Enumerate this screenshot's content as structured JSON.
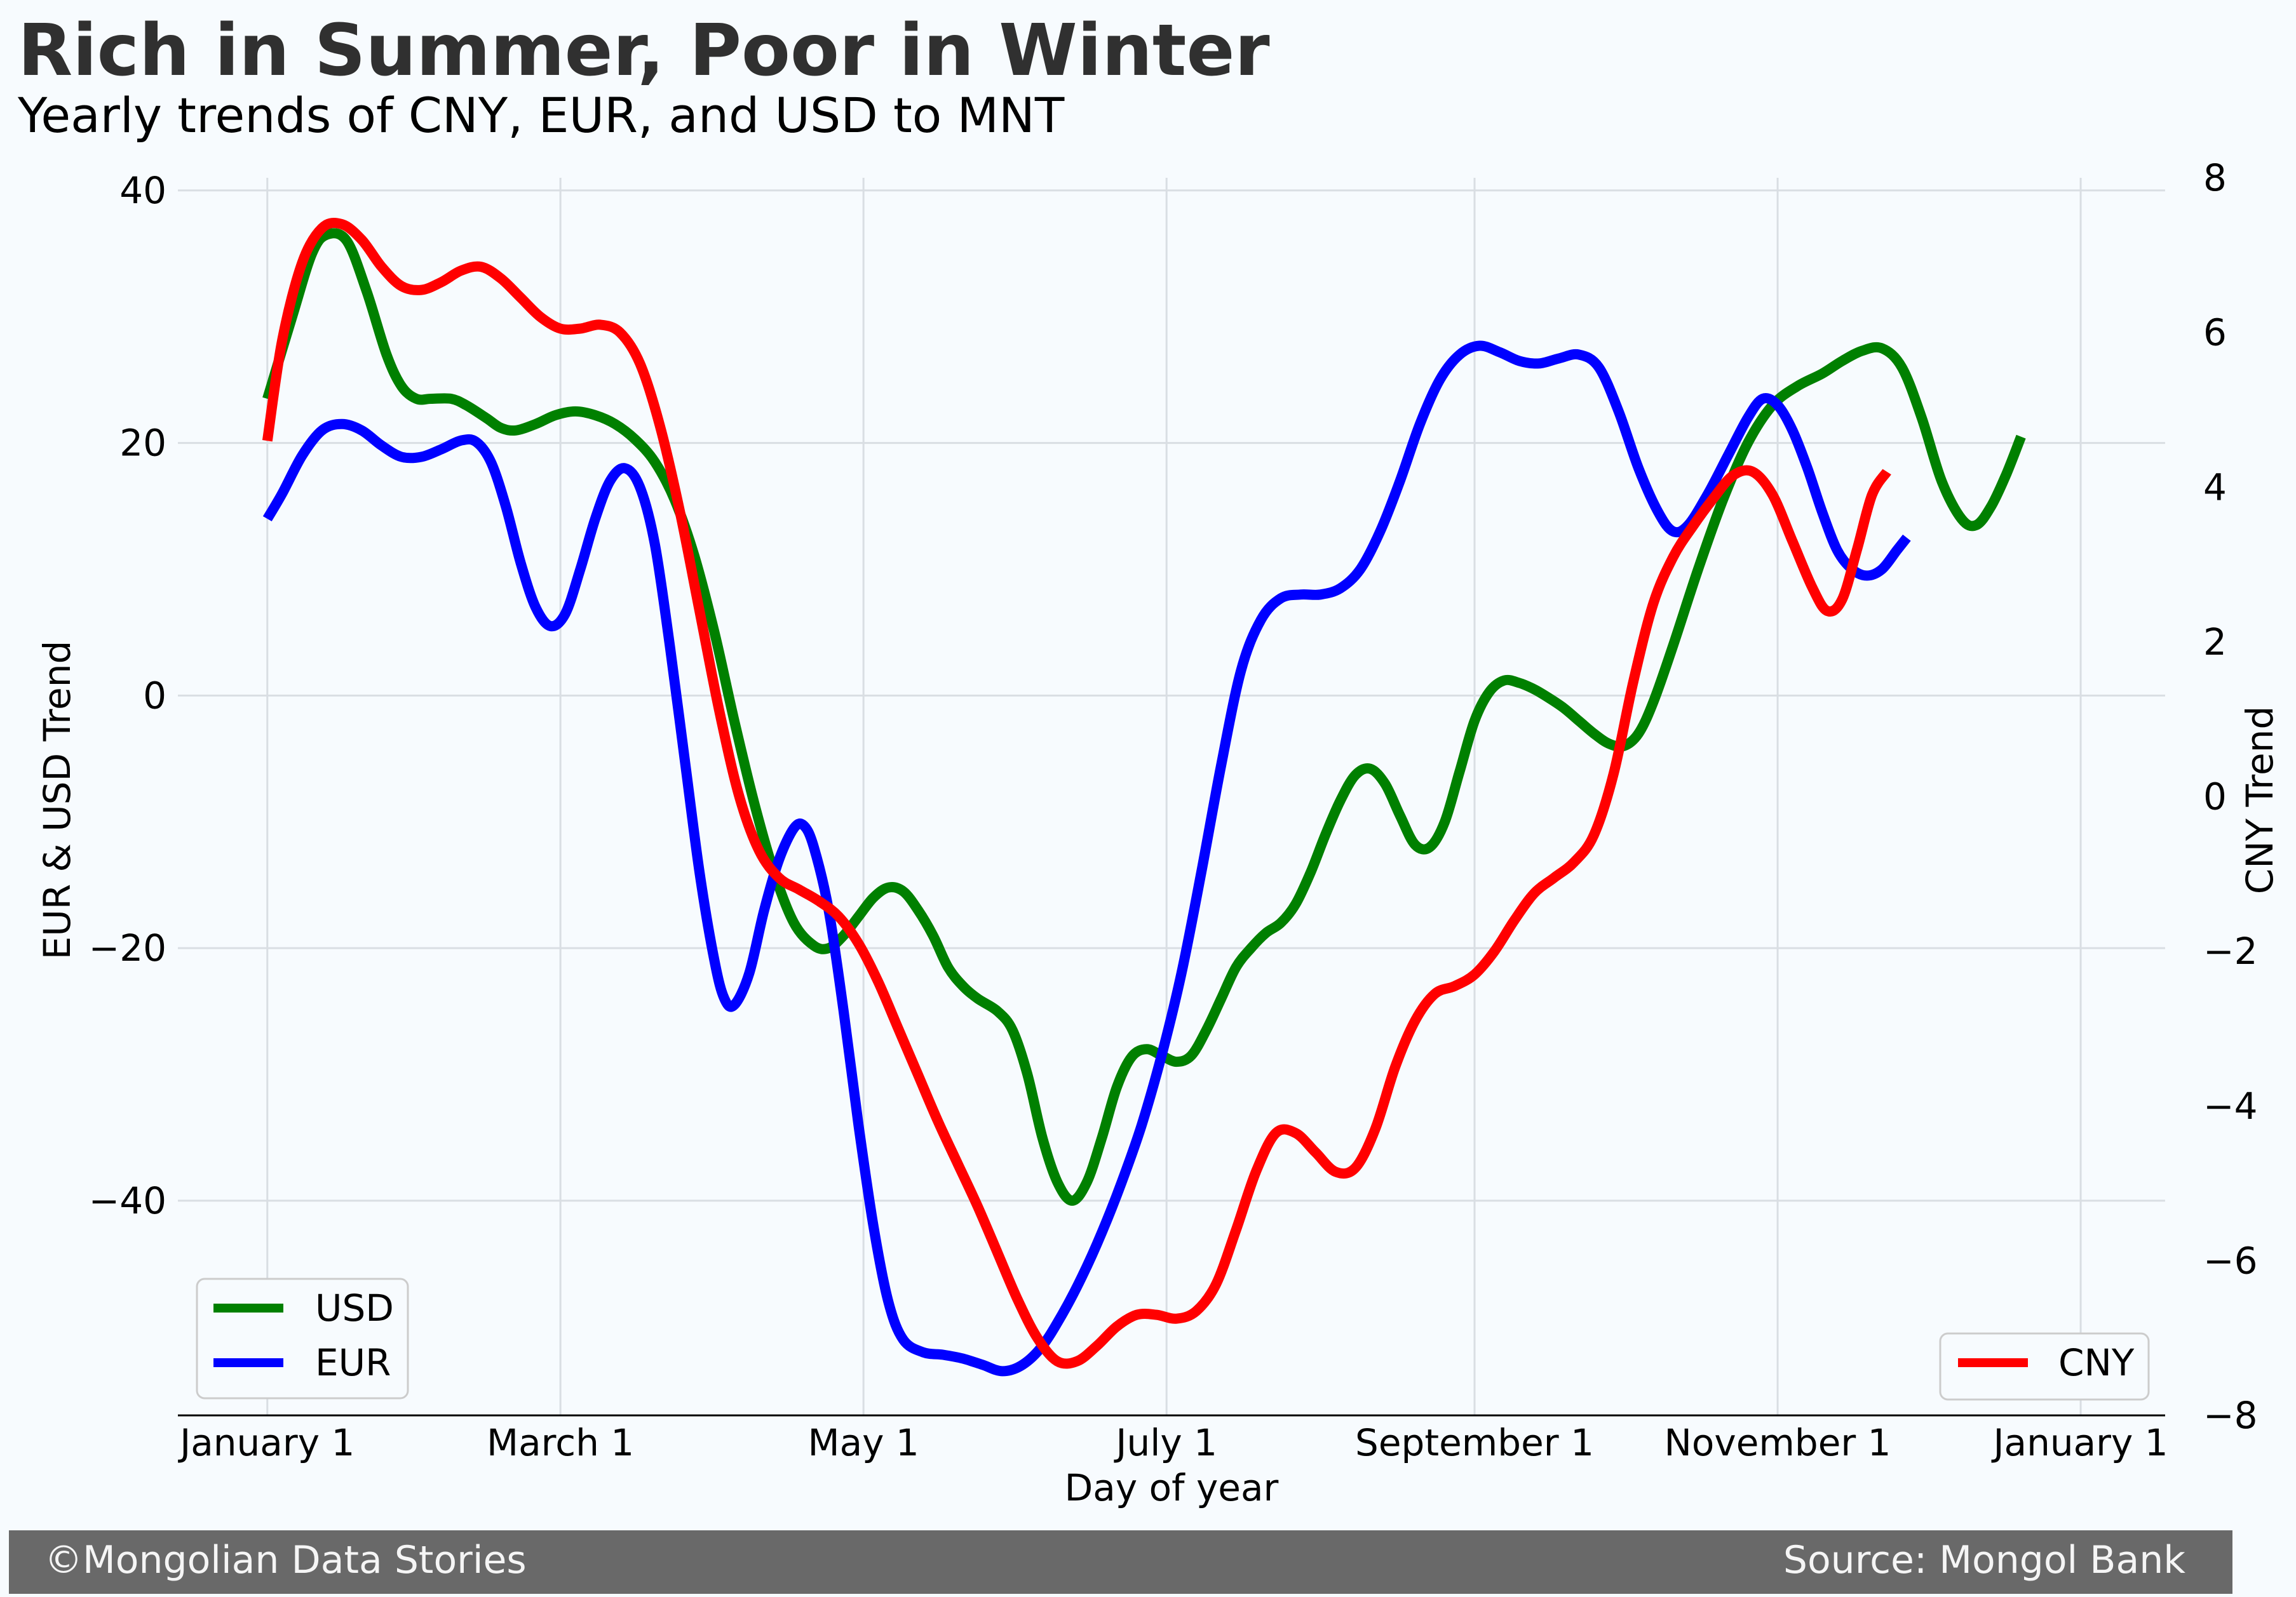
{
  "chart_data": {
    "type": "line",
    "title": "Rich in Summer, Poor in Winter",
    "subtitle": "Yearly trends of CNY, EUR, and USD to MNT",
    "xlabel": "Day of year",
    "ylabel_left": "EUR & USD Trend",
    "ylabel_right": "CNY Trend",
    "x_ticks": [
      {
        "label": "January 1",
        "day": 1
      },
      {
        "label": "March 1",
        "day": 60
      },
      {
        "label": "May 1",
        "day": 121
      },
      {
        "label": "July 1",
        "day": 182
      },
      {
        "label": "September 1",
        "day": 244
      },
      {
        "label": "November 1",
        "day": 305
      },
      {
        "label": "January 1",
        "day": 366
      }
    ],
    "xlim": [
      -17,
      383
    ],
    "ylim_left": [
      -57,
      41
    ],
    "ylim_right": [
      -8,
      8
    ],
    "yticks_left": [
      40,
      20,
      0,
      -20,
      -40
    ],
    "yticks_right": [
      8,
      6,
      4,
      2,
      0,
      -2,
      -4,
      -6,
      -8
    ],
    "grid": true,
    "legend_left": {
      "placement": "lower-left",
      "entries": [
        "USD",
        "EUR"
      ]
    },
    "legend_right": {
      "placement": "lower-right",
      "entries": [
        "CNY"
      ]
    },
    "series": [
      {
        "name": "USD",
        "axis": "left",
        "color": "#008000",
        "points": [
          [
            1,
            23.5
          ],
          [
            6,
            30
          ],
          [
            10,
            35
          ],
          [
            13,
            36.5
          ],
          [
            17,
            36
          ],
          [
            21,
            32
          ],
          [
            25,
            27
          ],
          [
            28,
            24.5
          ],
          [
            31,
            23.5
          ],
          [
            34,
            23.5
          ],
          [
            38,
            23.5
          ],
          [
            41,
            23
          ],
          [
            45,
            22
          ],
          [
            48,
            21.2
          ],
          [
            51,
            21
          ],
          [
            55,
            21.5
          ],
          [
            59,
            22.2
          ],
          [
            63,
            22.5
          ],
          [
            67,
            22.2
          ],
          [
            71,
            21.5
          ],
          [
            75,
            20.3
          ],
          [
            79,
            18.5
          ],
          [
            83,
            15.5
          ],
          [
            87,
            11
          ],
          [
            91,
            5
          ],
          [
            95,
            -2
          ],
          [
            99,
            -8.5
          ],
          [
            103,
            -14
          ],
          [
            107,
            -18
          ],
          [
            111,
            -19.8
          ],
          [
            114,
            -20
          ],
          [
            117,
            -19
          ],
          [
            120,
            -17.5
          ],
          [
            123,
            -16
          ],
          [
            126,
            -15.2
          ],
          [
            129,
            -15.5
          ],
          [
            132,
            -17
          ],
          [
            135,
            -19
          ],
          [
            138,
            -21.5
          ],
          [
            141,
            -23
          ],
          [
            144,
            -24
          ],
          [
            148,
            -25
          ],
          [
            151,
            -26.5
          ],
          [
            154,
            -30
          ],
          [
            157,
            -35
          ],
          [
            160,
            -38.5
          ],
          [
            163,
            -40
          ],
          [
            166,
            -38.5
          ],
          [
            169,
            -35
          ],
          [
            172,
            -31
          ],
          [
            175,
            -28.6
          ],
          [
            178,
            -28
          ],
          [
            181,
            -28.5
          ],
          [
            184,
            -29
          ],
          [
            187,
            -28.5
          ],
          [
            190,
            -26.5
          ],
          [
            193,
            -24
          ],
          [
            196,
            -21.5
          ],
          [
            199,
            -20
          ],
          [
            202,
            -18.8
          ],
          [
            205,
            -18
          ],
          [
            208,
            -16.5
          ],
          [
            211,
            -14
          ],
          [
            214,
            -11
          ],
          [
            217,
            -8.3
          ],
          [
            220,
            -6.3
          ],
          [
            223,
            -5.8
          ],
          [
            226,
            -7
          ],
          [
            229,
            -9.5
          ],
          [
            232,
            -11.8
          ],
          [
            235,
            -12
          ],
          [
            238,
            -10
          ],
          [
            241,
            -6
          ],
          [
            244,
            -2
          ],
          [
            247,
            0.3
          ],
          [
            250,
            1.2
          ],
          [
            253,
            1
          ],
          [
            256,
            0.5
          ],
          [
            259,
            -0.2
          ],
          [
            262,
            -1
          ],
          [
            265,
            -2
          ],
          [
            268,
            -3
          ],
          [
            271,
            -3.8
          ],
          [
            274,
            -4
          ],
          [
            277,
            -3
          ],
          [
            280,
            -0.5
          ],
          [
            284,
            4
          ],
          [
            289,
            10
          ],
          [
            294,
            15.5
          ],
          [
            299,
            20
          ],
          [
            304,
            23
          ],
          [
            309,
            24.5
          ],
          [
            314,
            25.5
          ],
          [
            318,
            26.5
          ],
          [
            322,
            27.3
          ],
          [
            326,
            27.5
          ],
          [
            330,
            26
          ],
          [
            334,
            22
          ],
          [
            338,
            17
          ],
          [
            342,
            14
          ],
          [
            345,
            13.5
          ],
          [
            348,
            15
          ],
          [
            351,
            17.5
          ],
          [
            354,
            20.5
          ]
        ]
      },
      {
        "name": "EUR",
        "axis": "left",
        "color": "#0000ff",
        "points": [
          [
            1,
            14
          ],
          [
            4,
            16
          ],
          [
            8,
            19
          ],
          [
            12,
            21
          ],
          [
            16,
            21.5
          ],
          [
            20,
            21
          ],
          [
            24,
            19.8
          ],
          [
            28,
            18.9
          ],
          [
            32,
            18.9
          ],
          [
            36,
            19.5
          ],
          [
            40,
            20.2
          ],
          [
            43,
            20.1
          ],
          [
            46,
            18.5
          ],
          [
            49,
            15
          ],
          [
            52,
            10.5
          ],
          [
            55,
            7
          ],
          [
            58,
            5.5
          ],
          [
            61,
            6.5
          ],
          [
            64,
            10
          ],
          [
            67,
            14
          ],
          [
            70,
            17
          ],
          [
            73,
            18
          ],
          [
            76,
            16.5
          ],
          [
            79,
            12
          ],
          [
            82,
            4
          ],
          [
            85,
            -5
          ],
          [
            88,
            -14
          ],
          [
            91,
            -21
          ],
          [
            93,
            -24
          ],
          [
            95,
            -24.5
          ],
          [
            98,
            -22
          ],
          [
            101,
            -17
          ],
          [
            104,
            -13
          ],
          [
            107,
            -10.5
          ],
          [
            109,
            -10.3
          ],
          [
            111,
            -12
          ],
          [
            114,
            -17
          ],
          [
            117,
            -25
          ],
          [
            120,
            -34
          ],
          [
            123,
            -42
          ],
          [
            126,
            -48
          ],
          [
            129,
            -51
          ],
          [
            133,
            -52
          ],
          [
            137,
            -52.2
          ],
          [
            141,
            -52.5
          ],
          [
            145,
            -53
          ],
          [
            149,
            -53.5
          ],
          [
            153,
            -53
          ],
          [
            157,
            -51.5
          ],
          [
            161,
            -49
          ],
          [
            165,
            -46
          ],
          [
            169,
            -42.5
          ],
          [
            173,
            -38.5
          ],
          [
            177,
            -34
          ],
          [
            181,
            -28.5
          ],
          [
            185,
            -22
          ],
          [
            189,
            -14
          ],
          [
            193,
            -5.5
          ],
          [
            197,
            2
          ],
          [
            201,
            6
          ],
          [
            205,
            7.7
          ],
          [
            209,
            8
          ],
          [
            213,
            8
          ],
          [
            217,
            8.5
          ],
          [
            221,
            10
          ],
          [
            225,
            13
          ],
          [
            229,
            17
          ],
          [
            233,
            21.5
          ],
          [
            237,
            25
          ],
          [
            241,
            27
          ],
          [
            245,
            27.7
          ],
          [
            249,
            27.2
          ],
          [
            253,
            26.5
          ],
          [
            257,
            26.3
          ],
          [
            261,
            26.7
          ],
          [
            265,
            27
          ],
          [
            269,
            26
          ],
          [
            273,
            22.5
          ],
          [
            277,
            18
          ],
          [
            281,
            14.5
          ],
          [
            284,
            13
          ],
          [
            287,
            13.5
          ],
          [
            291,
            16
          ],
          [
            295,
            19
          ],
          [
            299,
            22
          ],
          [
            302,
            23.5
          ],
          [
            305,
            23
          ],
          [
            308,
            21
          ],
          [
            311,
            18
          ],
          [
            314,
            14.5
          ],
          [
            317,
            11.5
          ],
          [
            320,
            10
          ],
          [
            323,
            9.5
          ],
          [
            326,
            10
          ],
          [
            329,
            11.5
          ],
          [
            331,
            12.5
          ]
        ]
      },
      {
        "name": "CNY",
        "axis": "right",
        "color": "#ff0000",
        "points": [
          [
            1,
            4.6
          ],
          [
            4,
            5.9
          ],
          [
            8,
            6.9
          ],
          [
            12,
            7.35
          ],
          [
            16,
            7.4
          ],
          [
            20,
            7.2
          ],
          [
            24,
            6.85
          ],
          [
            28,
            6.6
          ],
          [
            32,
            6.55
          ],
          [
            36,
            6.65
          ],
          [
            40,
            6.8
          ],
          [
            44,
            6.85
          ],
          [
            48,
            6.7
          ],
          [
            52,
            6.45
          ],
          [
            56,
            6.2
          ],
          [
            60,
            6.05
          ],
          [
            64,
            6.05
          ],
          [
            68,
            6.1
          ],
          [
            72,
            6
          ],
          [
            76,
            5.6
          ],
          [
            80,
            4.8
          ],
          [
            84,
            3.7
          ],
          [
            88,
            2.4
          ],
          [
            92,
            1.1
          ],
          [
            96,
            0
          ],
          [
            100,
            -0.7
          ],
          [
            104,
            -1.05
          ],
          [
            108,
            -1.2
          ],
          [
            112,
            -1.35
          ],
          [
            116,
            -1.55
          ],
          [
            120,
            -1.9
          ],
          [
            124,
            -2.4
          ],
          [
            128,
            -3
          ],
          [
            132,
            -3.6
          ],
          [
            136,
            -4.2
          ],
          [
            140,
            -4.75
          ],
          [
            144,
            -5.3
          ],
          [
            148,
            -5.9
          ],
          [
            152,
            -6.5
          ],
          [
            156,
            -7
          ],
          [
            160,
            -7.3
          ],
          [
            164,
            -7.3
          ],
          [
            168,
            -7.1
          ],
          [
            172,
            -6.85
          ],
          [
            176,
            -6.7
          ],
          [
            180,
            -6.7
          ],
          [
            184,
            -6.75
          ],
          [
            188,
            -6.65
          ],
          [
            192,
            -6.3
          ],
          [
            196,
            -5.6
          ],
          [
            200,
            -4.85
          ],
          [
            204,
            -4.35
          ],
          [
            208,
            -4.35
          ],
          [
            212,
            -4.6
          ],
          [
            216,
            -4.85
          ],
          [
            220,
            -4.8
          ],
          [
            224,
            -4.3
          ],
          [
            228,
            -3.5
          ],
          [
            232,
            -2.9
          ],
          [
            236,
            -2.55
          ],
          [
            240,
            -2.45
          ],
          [
            244,
            -2.3
          ],
          [
            248,
            -2
          ],
          [
            252,
            -1.6
          ],
          [
            256,
            -1.25
          ],
          [
            260,
            -1.05
          ],
          [
            264,
            -0.85
          ],
          [
            268,
            -0.5
          ],
          [
            272,
            0.3
          ],
          [
            276,
            1.5
          ],
          [
            280,
            2.5
          ],
          [
            284,
            3.1
          ],
          [
            288,
            3.5
          ],
          [
            292,
            3.85
          ],
          [
            296,
            4.15
          ],
          [
            300,
            4.2
          ],
          [
            304,
            3.9
          ],
          [
            308,
            3.3
          ],
          [
            312,
            2.7
          ],
          [
            315,
            2.4
          ],
          [
            318,
            2.55
          ],
          [
            321,
            3.2
          ],
          [
            324,
            3.9
          ],
          [
            327,
            4.2
          ]
        ]
      }
    ]
  },
  "footer": {
    "left": "©Mongolian Data Stories",
    "right": "Source: Mongol Bank"
  },
  "colors": {
    "background": "#f7fbfe",
    "footer_bar": "#696969",
    "grid": "#d9dee3"
  }
}
